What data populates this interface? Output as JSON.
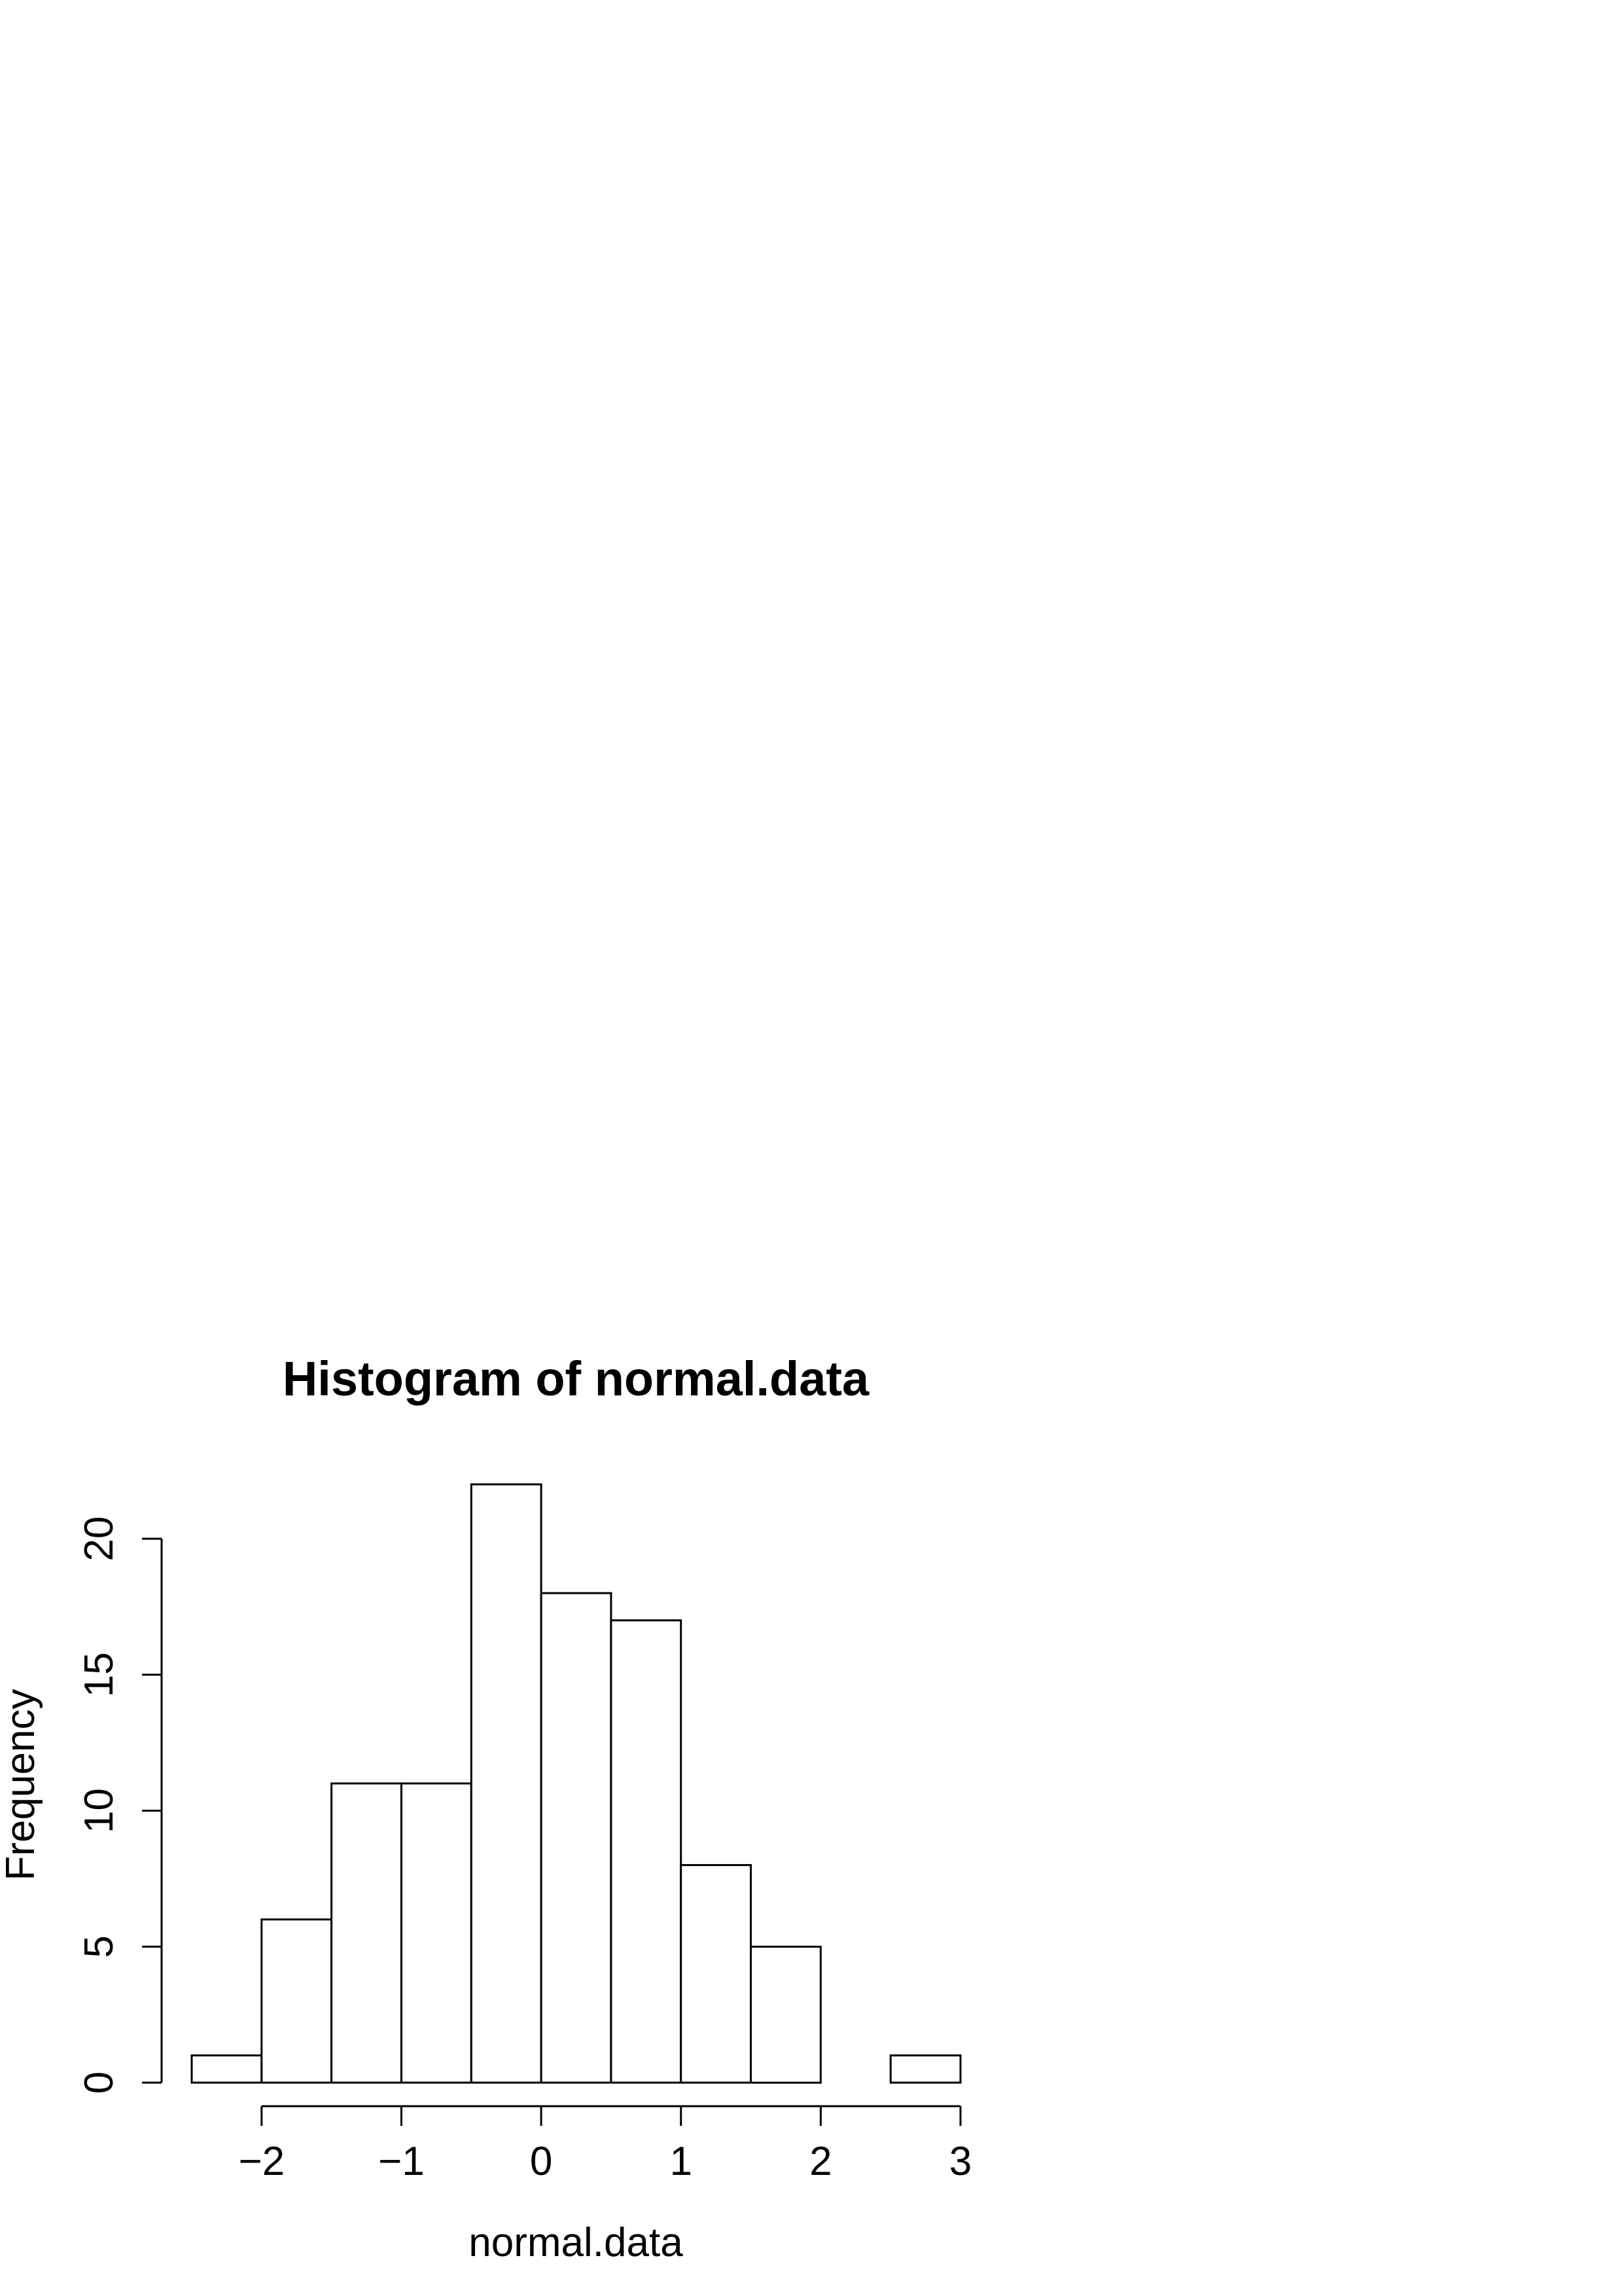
{
  "chart_data": {
    "type": "histogram",
    "title": "Histogram of normal.data",
    "xlabel": "normal.data",
    "ylabel": "Frequency",
    "bins": [
      {
        "start": -2.5,
        "end": -2.0,
        "count": 1
      },
      {
        "start": -2.0,
        "end": -1.5,
        "count": 6
      },
      {
        "start": -1.5,
        "end": -1.0,
        "count": 11
      },
      {
        "start": -1.0,
        "end": -0.5,
        "count": 11
      },
      {
        "start": -0.5,
        "end": 0.0,
        "count": 22
      },
      {
        "start": 0.0,
        "end": 0.5,
        "count": 18
      },
      {
        "start": 0.5,
        "end": 1.0,
        "count": 17
      },
      {
        "start": 1.0,
        "end": 1.5,
        "count": 8
      },
      {
        "start": 1.5,
        "end": 2.0,
        "count": 5
      },
      {
        "start": 2.0,
        "end": 2.5,
        "count": 0
      },
      {
        "start": 2.5,
        "end": 3.0,
        "count": 1
      }
    ],
    "xlim": [
      -2.5,
      3.0
    ],
    "ylim": [
      0,
      22
    ],
    "x_ticks": [
      -2,
      -1,
      0,
      1,
      2,
      3
    ],
    "x_tick_labels": [
      "−2",
      "−1",
      "0",
      "1",
      "2",
      "3"
    ],
    "y_ticks": [
      0,
      5,
      10,
      15,
      20
    ],
    "y_tick_labels": [
      "0",
      "5",
      "10",
      "15",
      "20"
    ],
    "bar_fill": "#ffffff",
    "bar_stroke": "#000000",
    "grid": false
  }
}
